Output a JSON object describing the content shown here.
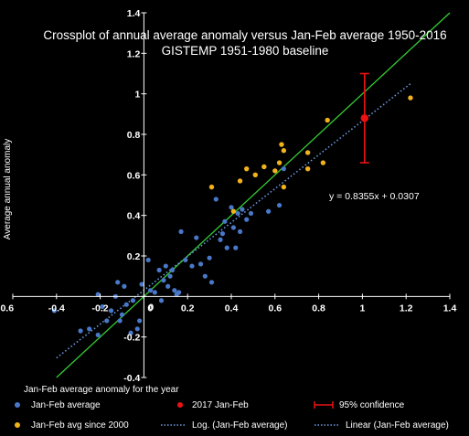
{
  "chart_data": {
    "type": "scatter",
    "title": "Crossplot of annual average anomaly versus Jan-Feb average 1950-2016",
    "subtitle": "GISTEMP 1951-1980 baseline",
    "xlabel": "Jan-Feb average anomaly for the year",
    "ylabel": "Average annual anomaly",
    "xlim": [
      -0.6,
      1.4
    ],
    "ylim": [
      -0.4,
      1.4
    ],
    "x_ticks": [
      "-0.6",
      "-0.4",
      "-0.2",
      "0",
      "0.2",
      "0.4",
      "0.6",
      "0.8",
      "1",
      "1.2",
      "1.4"
    ],
    "y_ticks": [
      "-0.4",
      "-0.2",
      "0",
      "0.2",
      "0.4",
      "0.6",
      "0.8",
      "1",
      "1.2",
      "1.4"
    ],
    "grid": false,
    "legend_position": "bottom",
    "equation": "y = 0.8355x + 0.0307",
    "colors": {
      "jan_feb": "#4a78c9",
      "since_2000": "#f2b21b",
      "highlight_2017": "#ee1111",
      "one_to_one": "#33cc33",
      "trend": "#6a9ae0",
      "axes": "#ffffff"
    },
    "series": [
      {
        "name": "Jan-Feb average",
        "points": [
          [
            -0.41,
            -0.07
          ],
          [
            -0.29,
            -0.17
          ],
          [
            -0.25,
            -0.16
          ],
          [
            -0.21,
            0.01
          ],
          [
            -0.21,
            -0.19
          ],
          [
            -0.19,
            -0.05
          ],
          [
            -0.17,
            -0.12
          ],
          [
            -0.15,
            -0.07
          ],
          [
            -0.13,
            0.0
          ],
          [
            -0.12,
            0.07
          ],
          [
            -0.11,
            -0.12
          ],
          [
            -0.1,
            -0.09
          ],
          [
            -0.09,
            0.05
          ],
          [
            -0.08,
            -0.04
          ],
          [
            -0.06,
            -0.18
          ],
          [
            -0.05,
            -0.02
          ],
          [
            -0.03,
            -0.16
          ],
          [
            -0.02,
            -0.12
          ],
          [
            -0.01,
            0.06
          ],
          [
            0.02,
            0.18
          ],
          [
            0.03,
            0.03
          ],
          [
            0.05,
            0.02
          ],
          [
            0.07,
            0.13
          ],
          [
            0.08,
            -0.02
          ],
          [
            0.09,
            0.08
          ],
          [
            0.1,
            0.15
          ],
          [
            0.11,
            0.05
          ],
          [
            0.12,
            0.1
          ],
          [
            0.13,
            0.13
          ],
          [
            0.14,
            0.03
          ],
          [
            0.15,
            0.01
          ],
          [
            0.16,
            0.02
          ],
          [
            0.17,
            0.32
          ],
          [
            0.19,
            0.18
          ],
          [
            0.22,
            0.15
          ],
          [
            0.24,
            0.29
          ],
          [
            0.26,
            0.16
          ],
          [
            0.28,
            0.1
          ],
          [
            0.3,
            0.19
          ],
          [
            0.31,
            0.07
          ],
          [
            0.33,
            0.48
          ],
          [
            0.35,
            0.28
          ],
          [
            0.36,
            0.31
          ],
          [
            0.37,
            0.37
          ],
          [
            0.38,
            0.24
          ],
          [
            0.4,
            0.44
          ],
          [
            0.41,
            0.34
          ],
          [
            0.42,
            0.24
          ],
          [
            0.43,
            0.41
          ],
          [
            0.44,
            0.32
          ],
          [
            0.45,
            0.43
          ],
          [
            0.47,
            0.38
          ],
          [
            0.49,
            0.41
          ],
          [
            0.57,
            0.42
          ],
          [
            0.62,
            0.45
          ],
          [
            0.64,
            0.63
          ]
        ]
      },
      {
        "name": "Jan-Feb avg since 2000",
        "points": [
          [
            0.31,
            0.54
          ],
          [
            0.41,
            0.42
          ],
          [
            0.44,
            0.57
          ],
          [
            0.47,
            0.63
          ],
          [
            0.51,
            0.6
          ],
          [
            0.55,
            0.64
          ],
          [
            0.6,
            0.62
          ],
          [
            0.62,
            0.66
          ],
          [
            0.63,
            0.75
          ],
          [
            0.64,
            0.54
          ],
          [
            0.64,
            0.72
          ],
          [
            0.75,
            0.63
          ],
          [
            0.75,
            0.71
          ],
          [
            0.82,
            0.66
          ],
          [
            0.84,
            0.87
          ],
          [
            1.22,
            0.98
          ]
        ]
      },
      {
        "name": "2017 Jan-Feb",
        "points": [
          [
            1.01,
            0.88
          ]
        ]
      }
    ],
    "confidence": {
      "name": "95% confidence",
      "x": 1.01,
      "y_low": 0.66,
      "y_high": 1.1
    },
    "trendlines": [
      {
        "name": "Log. (Jan-Feb average)",
        "kind": "dotted"
      },
      {
        "name": "Linear  (Jan-Feb average)",
        "kind": "dotted",
        "slope": 0.8355,
        "intercept": 0.0307,
        "x_range": [
          -0.4,
          1.22
        ]
      }
    ],
    "one_to_one_line": {
      "x_range": [
        -0.4,
        1.4
      ]
    }
  }
}
